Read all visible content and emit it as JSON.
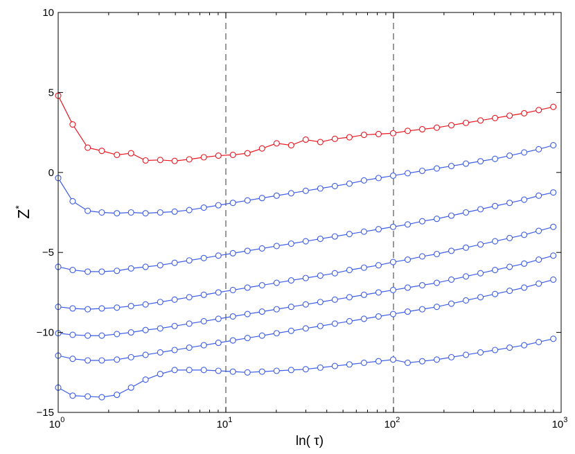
{
  "chart_data": {
    "type": "line",
    "xscale": "log",
    "xlim": [
      1,
      1000
    ],
    "ylim": [
      -15,
      10
    ],
    "grid": false,
    "xlabel": "ln( τ)",
    "ylabel": "Z*",
    "ylabel_main": "Z",
    "ylabel_sup": "*",
    "xticks": [
      {
        "value": 1,
        "base": "10",
        "exp": "0"
      },
      {
        "value": 10,
        "base": "10",
        "exp": "1"
      },
      {
        "value": 100,
        "base": "10",
        "exp": "2"
      },
      {
        "value": 1000,
        "base": "10",
        "exp": "3"
      }
    ],
    "yticks": [
      {
        "value": 10,
        "label": "10"
      },
      {
        "value": 5,
        "label": "5"
      },
      {
        "value": 0,
        "label": "0"
      },
      {
        "value": -5,
        "label": "−5"
      },
      {
        "value": -10,
        "label": "−10"
      },
      {
        "value": -15,
        "label": "−15"
      }
    ],
    "vlines": [
      10,
      100
    ],
    "x": [
      1.0,
      1.22,
      1.5,
      1.82,
      2.24,
      2.72,
      3.32,
      4.06,
      4.95,
      6.05,
      7.39,
      9.03,
      11.02,
      13.46,
      16.44,
      20.09,
      24.53,
      29.96,
      36.6,
      44.7,
      54.6,
      66.69,
      81.45,
      99.48,
      121.5,
      148.41,
      181.27,
      221.41,
      270.43,
      330.3,
      403.43,
      492.75,
      601.85,
      735.1,
      897.85
    ],
    "series": [
      {
        "color": "#e8141e",
        "values": [
          4.8,
          3.0,
          1.55,
          1.35,
          1.1,
          1.2,
          0.75,
          0.78,
          0.72,
          0.82,
          0.95,
          1.05,
          1.1,
          1.2,
          1.5,
          1.82,
          1.7,
          2.05,
          1.9,
          2.1,
          2.2,
          2.35,
          2.4,
          2.45,
          2.6,
          2.7,
          2.8,
          2.95,
          3.1,
          3.25,
          3.4,
          3.55,
          3.7,
          3.9,
          4.1
        ]
      },
      {
        "color": "#3c5ce6",
        "values": [
          -0.35,
          -1.8,
          -2.4,
          -2.5,
          -2.55,
          -2.5,
          -2.55,
          -2.5,
          -2.45,
          -2.35,
          -2.2,
          -2.05,
          -1.9,
          -1.75,
          -1.6,
          -1.45,
          -1.3,
          -1.15,
          -1.0,
          -0.85,
          -0.7,
          -0.5,
          -0.35,
          -0.2,
          -0.05,
          0.1,
          0.25,
          0.4,
          0.55,
          0.7,
          0.85,
          1.05,
          1.25,
          1.45,
          1.7
        ]
      },
      {
        "color": "#3c5ce6",
        "values": [
          -5.9,
          -6.1,
          -6.2,
          -6.2,
          -6.15,
          -6.0,
          -5.9,
          -5.8,
          -5.65,
          -5.5,
          -5.35,
          -5.2,
          -5.05,
          -4.9,
          -4.75,
          -4.6,
          -4.45,
          -4.3,
          -4.15,
          -4.0,
          -3.85,
          -3.7,
          -3.55,
          -3.4,
          -3.25,
          -3.05,
          -2.9,
          -2.7,
          -2.5,
          -2.3,
          -2.1,
          -1.9,
          -1.7,
          -1.45,
          -1.25
        ]
      },
      {
        "color": "#3c5ce6",
        "values": [
          -8.4,
          -8.5,
          -8.55,
          -8.5,
          -8.45,
          -8.35,
          -8.25,
          -8.1,
          -7.95,
          -7.8,
          -7.65,
          -7.5,
          -7.35,
          -7.2,
          -7.05,
          -6.9,
          -6.75,
          -6.6,
          -6.45,
          -6.3,
          -6.1,
          -5.95,
          -5.8,
          -5.6,
          -5.45,
          -5.25,
          -5.1,
          -4.9,
          -4.7,
          -4.5,
          -4.3,
          -4.1,
          -3.9,
          -3.65,
          -3.4
        ]
      },
      {
        "color": "#3c5ce6",
        "values": [
          -10.05,
          -10.15,
          -10.2,
          -10.2,
          -10.1,
          -10.0,
          -9.85,
          -9.75,
          -9.6,
          -9.45,
          -9.3,
          -9.15,
          -9.0,
          -8.85,
          -8.7,
          -8.55,
          -8.4,
          -8.25,
          -8.1,
          -7.95,
          -7.8,
          -7.65,
          -7.5,
          -7.35,
          -7.2,
          -7.05,
          -6.9,
          -6.7,
          -6.5,
          -6.3,
          -6.1,
          -5.9,
          -5.7,
          -5.45,
          -5.2
        ]
      },
      {
        "color": "#3c5ce6",
        "values": [
          -11.45,
          -11.65,
          -11.75,
          -11.75,
          -11.7,
          -11.55,
          -11.4,
          -11.25,
          -11.1,
          -10.95,
          -10.8,
          -10.65,
          -10.5,
          -10.35,
          -10.2,
          -10.05,
          -9.9,
          -9.75,
          -9.6,
          -9.45,
          -9.3,
          -9.15,
          -9.0,
          -8.85,
          -8.7,
          -8.55,
          -8.4,
          -8.2,
          -8.0,
          -7.8,
          -7.6,
          -7.4,
          -7.2,
          -6.95,
          -6.7
        ]
      },
      {
        "color": "#3c5ce6",
        "values": [
          -13.45,
          -13.95,
          -14.0,
          -14.05,
          -13.9,
          -13.45,
          -12.95,
          -12.6,
          -12.35,
          -12.35,
          -12.35,
          -12.4,
          -12.45,
          -12.5,
          -12.45,
          -12.4,
          -12.35,
          -12.3,
          -12.2,
          -12.1,
          -12.0,
          -11.9,
          -11.8,
          -11.7,
          -11.9,
          -11.8,
          -11.7,
          -11.55,
          -11.4,
          -11.25,
          -11.1,
          -10.95,
          -10.8,
          -10.6,
          -10.4
        ]
      }
    ]
  }
}
